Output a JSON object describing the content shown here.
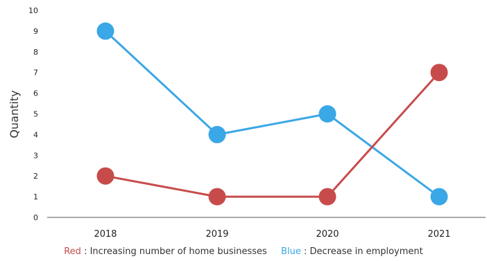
{
  "chart_data": {
    "type": "line",
    "categories": [
      "2018",
      "2019",
      "2020",
      "2021"
    ],
    "series": [
      {
        "name": "Decrease in employment",
        "color": "#3aa7e6",
        "values": [
          9,
          4,
          5,
          1
        ]
      },
      {
        "name": "Increasing number of home businesses",
        "color": "#c84b4b",
        "values": [
          2,
          1,
          1,
          7
        ]
      }
    ],
    "xlabel": "",
    "ylabel": "Quantity",
    "ylim": [
      0,
      10
    ],
    "yticks": [
      "0",
      "1",
      "2",
      "3",
      "4",
      "5",
      "6",
      "7",
      "8",
      "9",
      "10"
    ],
    "grid": false,
    "legend_placement": "bottom"
  },
  "legend": {
    "red_key": "Red",
    "red_text": ": Increasing number of home businesses",
    "blue_key": "Blue",
    "blue_text": ": Decrease in employment"
  }
}
